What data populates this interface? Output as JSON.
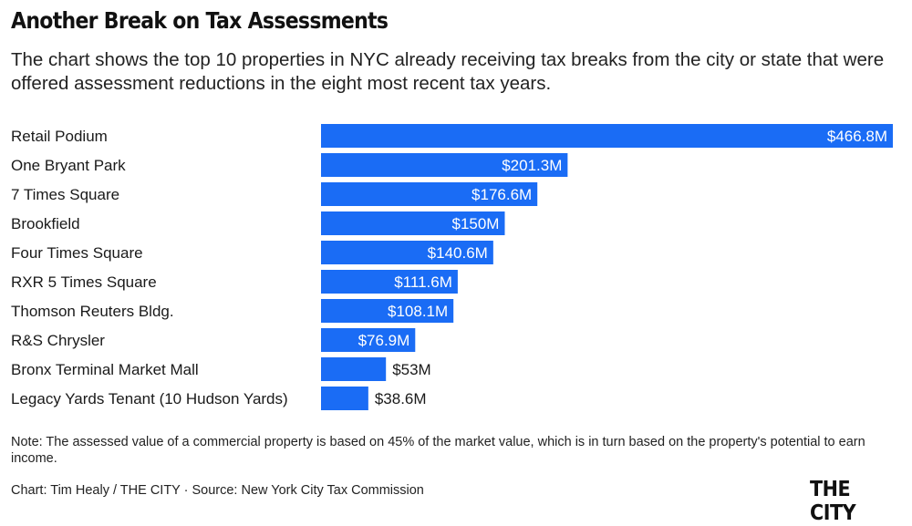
{
  "title": "Another Break on Tax Assessments",
  "subtitle": "The chart shows the top 10 properties in NYC already receiving tax breaks from the city or state that were offered assessment reductions in the eight most recent tax years.",
  "note": "Note: The assessed value of a commercial property is based on 45% of the market value, which is in turn based on the property's potential to earn income.",
  "credit": "Chart: Tim Healy / THE CITY · Source: New York City Tax Commission",
  "logo_text": "THE CITY",
  "colors": {
    "bar": "#1a6cf5",
    "label_inside": "#ffffff",
    "label_outside": "#1a1a1a"
  },
  "chart_data": {
    "type": "bar",
    "orientation": "horizontal",
    "categories": [
      "Retail Podium",
      "One Bryant Park",
      "7 Times Square",
      "Brookfield",
      "Four Times Square",
      "RXR 5 Times Square",
      "Thomson Reuters Bldg.",
      "R&S Chrysler",
      "Bronx Terminal Market Mall",
      "Legacy Yards Tenant (10 Hudson Yards)"
    ],
    "values": [
      466.8,
      201.3,
      176.6,
      150,
      140.6,
      111.6,
      108.1,
      76.9,
      53,
      38.6
    ],
    "labels": [
      "$466.8M",
      "$201.3M",
      "$176.6M",
      "$150M",
      "$140.6M",
      "$111.6M",
      "$108.1M",
      "$76.9M",
      "$53M",
      "$38.6M"
    ],
    "unit": "$M",
    "xlim": [
      0,
      466.8
    ]
  }
}
